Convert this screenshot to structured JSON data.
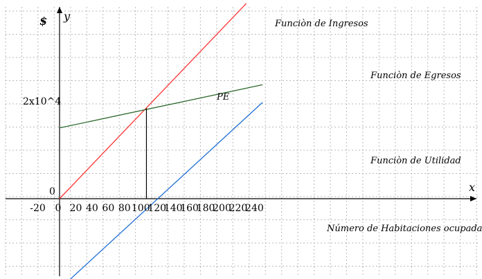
{
  "chart_data": {
    "type": "line",
    "xlim": [
      -30,
      250
    ],
    "ylim": [
      -28000,
      46000
    ],
    "xticks": [
      -20,
      0,
      20,
      40,
      60,
      80,
      100,
      120,
      140,
      160,
      180,
      200,
      220,
      240
    ],
    "x_tick_labels": [
      "-20",
      "0",
      "20",
      "40",
      "60",
      "80",
      "100",
      "120",
      "140",
      "160",
      "180",
      "200",
      "220",
      "240"
    ],
    "origin_label": "0",
    "y_tick_value": 24500,
    "y_tick_label": "2x10^4",
    "xlabel": "x",
    "ylabel_axis": "y",
    "ylabel_unit": "$",
    "x_caption": "Número de Habitaciones ocupadas",
    "grid": true,
    "series": [
      {
        "name": "Funciòn de Ingresos",
        "color": "#ff3333",
        "x": [
          0,
          230
        ],
        "y": [
          0,
          49700
        ]
      },
      {
        "name": "Funciòn de Egresos",
        "color": "#2e6b2e",
        "x": [
          0,
          250
        ],
        "y": [
          18000,
          29000
        ]
      },
      {
        "name": "Funciòn de Utilidad",
        "color": "#1f6fd6",
        "x": [
          0,
          250
        ],
        "y": [
          -23000,
          24500
        ]
      }
    ],
    "annotations": [
      {
        "text": "PE",
        "x": 107,
        "y": 23000
      }
    ],
    "drop_line": {
      "x": 107,
      "y_from": 0,
      "y_to": 23000,
      "color": "#000000"
    }
  }
}
